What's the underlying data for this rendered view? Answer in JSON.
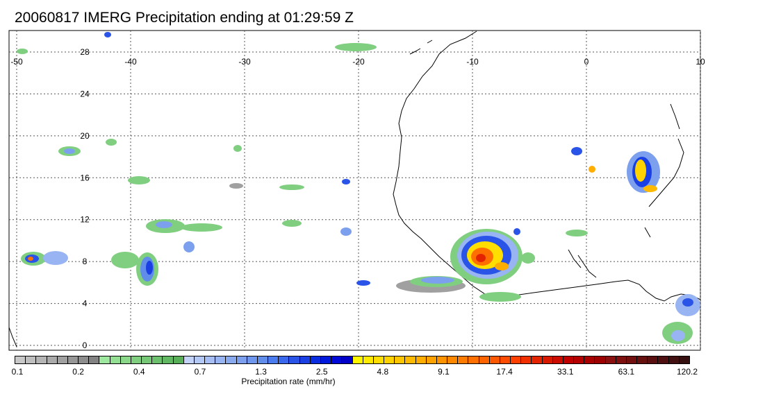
{
  "title": "20060817 IMERG Precipitation ending at 01:29:59 Z",
  "map": {
    "lon_ticks": [
      "-50",
      "-40",
      "-30",
      "-20",
      "-10",
      "0",
      "10"
    ],
    "lat_ticks": [
      "28",
      "24",
      "20",
      "16",
      "12",
      "8",
      "4",
      "0"
    ],
    "lon_range": [
      -50,
      10
    ],
    "lat_range": [
      -0.5,
      30.5
    ],
    "grid": true,
    "gridline_style": "dotted"
  },
  "colorbar": {
    "title": "Precipitation rate (mm/hr)",
    "labels": [
      "0.1",
      "0.2",
      "0.4",
      "0.7",
      "1.3",
      "2.5",
      "4.8",
      "9.1",
      "17.4",
      "33.1",
      "63.1",
      "120.2"
    ],
    "colors": [
      "#c8c8c8",
      "#bebebe",
      "#b4b4b4",
      "#aaaaaa",
      "#a0a0a0",
      "#969696",
      "#8c8c8c",
      "#828282",
      "#9ee79e",
      "#94df94",
      "#8ad78a",
      "#80cf80",
      "#76c776",
      "#6cbf6c",
      "#62b762",
      "#58af58",
      "#c2d2f8",
      "#b4c8f6",
      "#a6bef4",
      "#98b4f2",
      "#8aaaf0",
      "#7ca0ee",
      "#6e96ec",
      "#608cea",
      "#4a7cf0",
      "#3a68ec",
      "#2a54e8",
      "#1a40e4",
      "#0a2ce0",
      "#0018dc",
      "#0008d8",
      "#0000c8",
      "#fff600",
      "#ffea00",
      "#ffde00",
      "#ffd200",
      "#ffc600",
      "#ffba00",
      "#ffae00",
      "#ffa200",
      "#ff9400",
      "#ff8800",
      "#ff7c00",
      "#ff7000",
      "#ff6400",
      "#ff5800",
      "#ff4c00",
      "#ff4000",
      "#f03000",
      "#e42400",
      "#d81800",
      "#cc0c00",
      "#c00000",
      "#b40000",
      "#a80000",
      "#9c0000",
      "#8a1010",
      "#7e1010",
      "#721010",
      "#661010",
      "#5a1010",
      "#4e1010",
      "#421010",
      "#361010"
    ]
  }
}
